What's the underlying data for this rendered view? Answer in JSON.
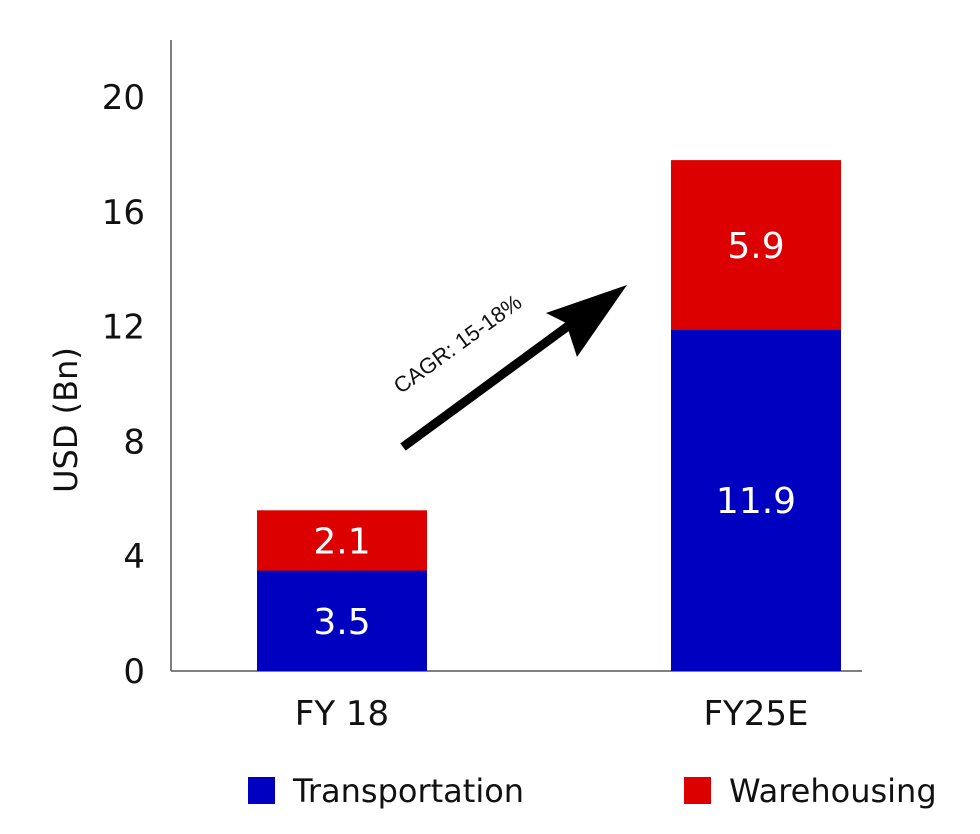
{
  "chart_data": {
    "type": "bar",
    "stacked": true,
    "categories": [
      "FY 18",
      "FY25E"
    ],
    "series": [
      {
        "name": "Transportation",
        "values": [
          3.5,
          11.9
        ],
        "color": "#0000c0"
      },
      {
        "name": "Warehousing",
        "values": [
          2.1,
          5.9
        ],
        "color": "#dd0000"
      }
    ],
    "ylabel": "USD (Bn)",
    "ylim": [
      0,
      22
    ],
    "yticks": [
      0,
      4,
      8,
      12,
      16,
      20
    ],
    "grid": false,
    "legend": "bottom",
    "annotation": "CAGR: 15-18%"
  }
}
